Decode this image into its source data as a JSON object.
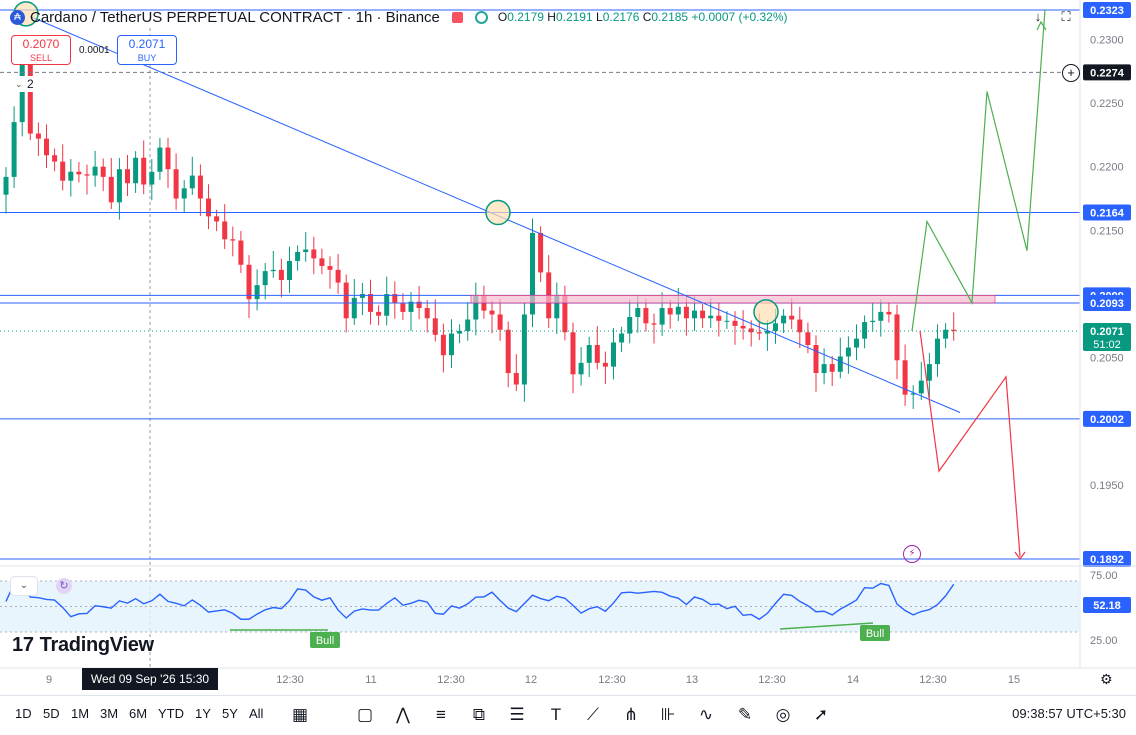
{
  "header": {
    "symbol": "Cardano / TetherUS PERPETUAL CONTRACT · 1h · Binance",
    "ohlc": {
      "o": "0.2179",
      "h": "0.2191",
      "l": "0.2176",
      "c": "0.2185",
      "change": "+0.0007 (+0.32%)"
    },
    "sell_price": "0.2070",
    "sell_label": "SELL",
    "buy_price": "0.2071",
    "buy_label": "BUY",
    "spread": "0.0001",
    "indicator_count": "2"
  },
  "logo_text": "TradingView",
  "crosshair_date": "Wed 09 Sep '26   15:30",
  "clock": "09:38:57 UTC+5:30",
  "timeframes": [
    "1D",
    "5D",
    "1M",
    "3M",
    "6M",
    "YTD",
    "1Y",
    "5Y",
    "All"
  ],
  "tool_icons": [
    "calendar-range-icon",
    "rectangle-icon",
    "pattern-icon",
    "fib-icon",
    "long-position-icon",
    "lines-icon",
    "text-icon",
    "trendline-icon",
    "pitchfork-icon",
    "forecast-icon",
    "path-icon",
    "brush-icon",
    "circle-icon",
    "arrow-icon"
  ],
  "colors": {
    "up": "#089981",
    "down": "#f23645",
    "accent": "#2962ff",
    "rsi": "#2962ff",
    "level": "#2962ff"
  },
  "chart_data": {
    "type": "candlestick",
    "x_ticks": [
      "9",
      "12:30",
      "11",
      "12:30",
      "12",
      "12:30",
      "13",
      "12:30",
      "14",
      "12:30",
      "15"
    ],
    "y_ticks": [
      "0.2300",
      "0.2250",
      "0.2200",
      "0.2150",
      "0.2050",
      "0.1950"
    ],
    "ylim": [
      0.1892,
      0.2323
    ],
    "price_labels": [
      {
        "value": "0.2323",
        "kind": "level"
      },
      {
        "value": "0.2274",
        "kind": "dashed"
      },
      {
        "value": "0.2164",
        "kind": "level"
      },
      {
        "value": "0.2099",
        "kind": "level"
      },
      {
        "value": "0.2093",
        "kind": "level"
      },
      {
        "value": "0.2071",
        "kind": "last",
        "countdown": "51:02"
      },
      {
        "value": "0.2002",
        "kind": "level"
      },
      {
        "value": "0.1892",
        "kind": "level"
      }
    ],
    "close": [
      0.2192,
      0.2235,
      0.228,
      0.2226,
      0.2222,
      0.2209,
      0.2204,
      0.2189,
      0.2196,
      0.2194,
      0.2193,
      0.22,
      0.2192,
      0.2172,
      0.2198,
      0.2187,
      0.2207,
      0.2186,
      0.2196,
      0.2215,
      0.2198,
      0.2175,
      0.2183,
      0.2193,
      0.2175,
      0.2161,
      0.2157,
      0.2143,
      0.2142,
      0.2123,
      0.2096,
      0.2107,
      0.2118,
      0.2119,
      0.2111,
      0.2126,
      0.2133,
      0.2135,
      0.2128,
      0.2122,
      0.2119,
      0.2109,
      0.2081,
      0.2097,
      0.21,
      0.2086,
      0.2083,
      0.21,
      0.2093,
      0.2086,
      0.2094,
      0.2089,
      0.2081,
      0.2068,
      0.2052,
      0.2069,
      0.2071,
      0.208,
      0.2099,
      0.2087,
      0.2084,
      0.2072,
      0.2038,
      0.2029,
      0.2084,
      0.2148,
      0.2117,
      0.2081,
      0.2099,
      0.207,
      0.2037,
      0.2046,
      0.206,
      0.2046,
      0.2043,
      0.2062,
      0.2069,
      0.2082,
      0.2089,
      0.2077,
      0.2076,
      0.2089,
      0.2084,
      0.209,
      0.2081,
      0.2087,
      0.2081,
      0.2083,
      0.2079,
      0.2079,
      0.2075,
      0.2073,
      0.207,
      0.2069,
      0.2071,
      0.2077,
      0.2083,
      0.208,
      0.207,
      0.206,
      0.2038,
      0.2045,
      0.2039,
      0.2051,
      0.2058,
      0.2065,
      0.2078,
      0.2079,
      0.2086,
      0.2084,
      0.2048,
      0.2021,
      0.2022,
      0.2032,
      0.2045,
      0.2065,
      0.2072,
      0.2071
    ]
  },
  "rsi": {
    "levels": [
      "75.00",
      "25.00"
    ],
    "current": "52.18",
    "divergence_labels": [
      "Bull",
      "Bull"
    ]
  }
}
